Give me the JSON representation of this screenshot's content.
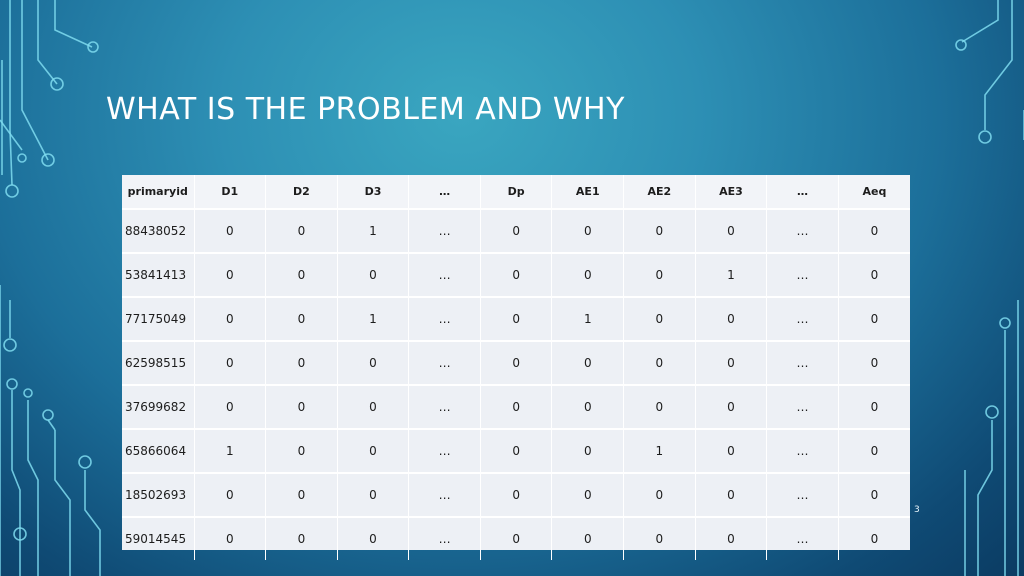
{
  "slide": {
    "title": "WHAT IS THE PROBLEM AND WHY",
    "page_number": "3"
  },
  "table": {
    "headers": [
      "primaryid",
      "D1",
      "D2",
      "D3",
      "…",
      "Dp",
      "AE1",
      "AE2",
      "AE3",
      "…",
      "Aeq"
    ],
    "rows": [
      [
        "88438052",
        "0",
        "0",
        "1",
        "…",
        "0",
        "0",
        "0",
        "0",
        "…",
        "0"
      ],
      [
        "53841413",
        "0",
        "0",
        "0",
        "…",
        "0",
        "0",
        "0",
        "1",
        "…",
        "0"
      ],
      [
        "77175049",
        "0",
        "0",
        "1",
        "…",
        "0",
        "1",
        "0",
        "0",
        "…",
        "0"
      ],
      [
        "62598515",
        "0",
        "0",
        "0",
        "…",
        "0",
        "0",
        "0",
        "0",
        "…",
        "0"
      ],
      [
        "37699682",
        "0",
        "0",
        "0",
        "…",
        "0",
        "0",
        "0",
        "0",
        "…",
        "0"
      ],
      [
        "65866064",
        "1",
        "0",
        "0",
        "…",
        "0",
        "0",
        "1",
        "0",
        "…",
        "0"
      ],
      [
        "18502693",
        "0",
        "0",
        "0",
        "…",
        "0",
        "0",
        "0",
        "0",
        "…",
        "0"
      ],
      [
        "59014545",
        "0",
        "0",
        "0",
        "…",
        "0",
        "0",
        "0",
        "0",
        "…",
        "0"
      ]
    ]
  },
  "decoration": {
    "icon": "circuit-lines-icon",
    "line_color": "#7fdcf0"
  }
}
